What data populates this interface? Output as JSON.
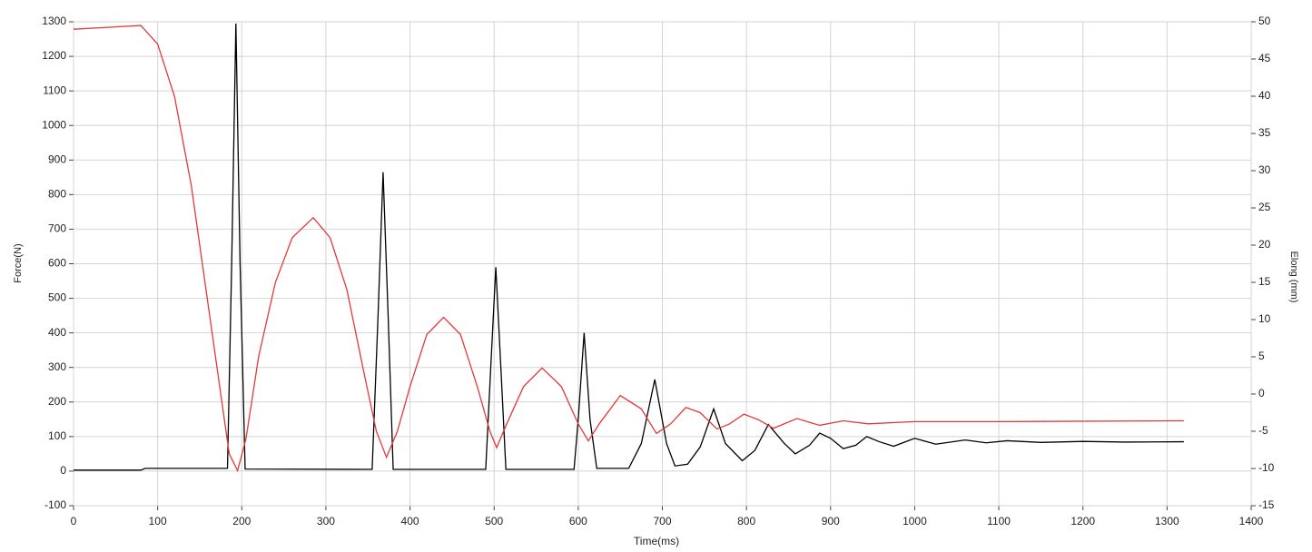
{
  "chart_data": {
    "type": "line",
    "x_label": "Time(ms)",
    "y_label": "Force(N)",
    "y2_label": "Elong (mm)",
    "xlim": [
      0,
      1400
    ],
    "xticks": [
      0,
      100,
      200,
      300,
      400,
      500,
      600,
      700,
      800,
      900,
      1000,
      1100,
      1200,
      1300,
      1400
    ],
    "ylim": [
      -100,
      1300
    ],
    "yticks": [
      -100,
      0,
      100,
      200,
      300,
      400,
      500,
      600,
      700,
      800,
      900,
      1000,
      1100,
      1200,
      1300
    ],
    "y2lim": [
      -15,
      50
    ],
    "y2ticks": [
      -15,
      -10,
      -5,
      0,
      5,
      10,
      15,
      20,
      25,
      30,
      35,
      40,
      45,
      50
    ],
    "grid": true,
    "series": [
      {
        "color": "#000000",
        "x": [
          0,
          80,
          85,
          183,
          188,
          193,
          198,
          204,
          355,
          362,
          368,
          374,
          380,
          490,
          496,
          502,
          508,
          514,
          595,
          600,
          607,
          614,
          622,
          660,
          675,
          691,
          705,
          715,
          730,
          745,
          761,
          775,
          795,
          810,
          826,
          845,
          858,
          875,
          887,
          900,
          915,
          930,
          943,
          958,
          975,
          1000,
          1025,
          1060,
          1085,
          1110,
          1150,
          1200,
          1250,
          1320
        ],
        "values": [
          3,
          3,
          8,
          8,
          600,
          1295,
          600,
          6,
          5,
          450,
          865,
          450,
          5,
          5,
          300,
          590,
          300,
          5,
          5,
          150,
          400,
          150,
          8,
          8,
          80,
          265,
          80,
          15,
          20,
          70,
          180,
          80,
          30,
          60,
          135,
          80,
          50,
          75,
          110,
          95,
          65,
          75,
          100,
          85,
          72,
          95,
          78,
          90,
          82,
          88,
          83,
          86,
          84,
          85
        ]
      },
      {
        "color": "#e03a3a",
        "axis": "y2",
        "x": [
          0,
          80,
          100,
          120,
          140,
          160,
          175,
          185,
          195,
          205,
          220,
          240,
          260,
          285,
          305,
          325,
          345,
          360,
          372,
          385,
          400,
          420,
          440,
          460,
          480,
          495,
          503,
          515,
          535,
          557,
          580,
          600,
          612,
          625,
          650,
          675,
          693,
          710,
          728,
          745,
          765,
          780,
          797,
          815,
          832,
          860,
          887,
          915,
          945,
          1000,
          1100,
          1320
        ],
        "values": [
          49,
          49.5,
          47,
          40,
          28,
          12,
          0,
          -8,
          -10.3,
          -6,
          5,
          15,
          21,
          23.7,
          21,
          14,
          3,
          -5,
          -8.5,
          -5,
          1,
          8,
          10.3,
          8,
          1,
          -5,
          -7.2,
          -4,
          1,
          3.5,
          1,
          -4,
          -6.3,
          -4,
          -0.2,
          -2,
          -5.3,
          -4,
          -1.8,
          -2.5,
          -4.7,
          -4,
          -2.7,
          -3.5,
          -4.6,
          -3.3,
          -4.2,
          -3.6,
          -4,
          -3.7,
          -3.7,
          -3.6
        ]
      }
    ]
  }
}
